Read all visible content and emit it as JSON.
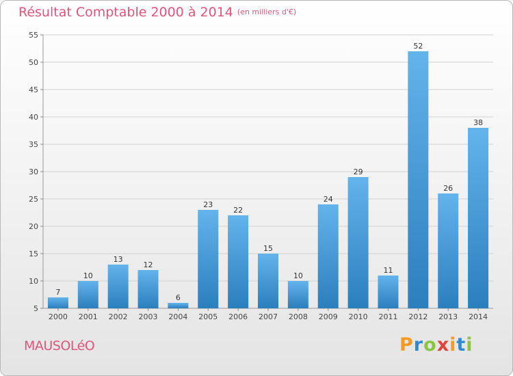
{
  "header": {
    "title": "Résultat Comptable 2000 à 2014",
    "subtitle": "(en milliers d'€)"
  },
  "footer": {
    "commune": "MAUSOLéO",
    "brand_letters": [
      "P",
      "r",
      "o",
      "x",
      "i",
      "t",
      "i"
    ],
    "brand_colors": [
      "#f59b1f",
      "#2e8bd0",
      "#8bc53f",
      "#e2443a",
      "#f59b1f",
      "#2e8bd0",
      "#8bc53f"
    ]
  },
  "colors": {
    "title": "#e0557b",
    "bar_top": "#63b3ec",
    "bar_bottom": "#2b7fbd",
    "grid": "#d0d0d0"
  },
  "chart_data": {
    "type": "bar",
    "title": "Résultat Comptable 2000 à 2014",
    "ylabel": "en milliers d'€",
    "xlabel": "",
    "categories": [
      "2000",
      "2001",
      "2002",
      "2003",
      "2004",
      "2005",
      "2006",
      "2007",
      "2008",
      "2009",
      "2010",
      "2011",
      "2012",
      "2013",
      "2014"
    ],
    "values": [
      7,
      10,
      13,
      12,
      6,
      23,
      22,
      15,
      10,
      24,
      29,
      11,
      52,
      26,
      38
    ],
    "ylim": [
      5,
      55
    ],
    "yticks": [
      5,
      10,
      15,
      20,
      25,
      30,
      35,
      40,
      45,
      50,
      55
    ],
    "grid": true
  }
}
